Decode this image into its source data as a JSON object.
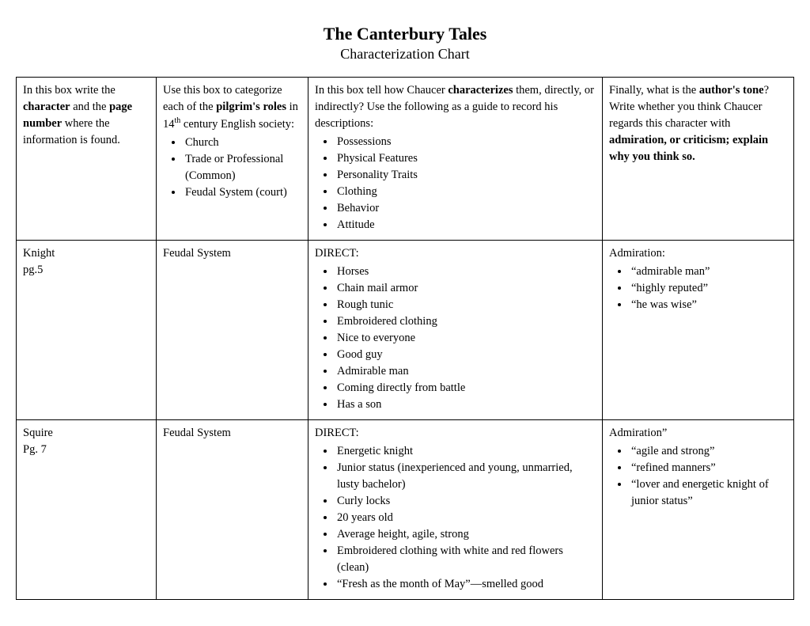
{
  "title": "The Canterbury Tales",
  "subtitle": "Characterization Chart",
  "header": {
    "col1_pre": "In this box write the ",
    "col1_b1": "character",
    "col1_mid": " and the ",
    "col1_b2": "page number",
    "col1_post": " where the information is found.",
    "col2_pre": "Use this box to categorize each of the ",
    "col2_b": "pilgrim's roles",
    "col2_mid": " in 14",
    "col2_sup": "th",
    "col2_post": " century English society:",
    "col2_items": [
      "Church",
      "Trade or Professional (Common)",
      "Feudal System (court)"
    ],
    "col3_pre": "In this box tell how Chaucer ",
    "col3_b": "characterizes",
    "col3_post": " them, directly, or indirectly? Use the following as a guide to record his descriptions:",
    "col3_items": [
      "Possessions",
      "Physical Features",
      "Personality Traits",
      "Clothing",
      "Behavior",
      "Attitude"
    ],
    "col4_pre": "Finally, what is the ",
    "col4_b1": "author's tone",
    "col4_mid": "? Write whether you think Chaucer regards this character with ",
    "col4_b2": "admiration, or criticism; explain why you think so."
  },
  "rows": [
    {
      "character": "Knight",
      "page": "pg.5",
      "role": "Feudal System",
      "desc_label": "DIRECT:",
      "desc_items": [
        "Horses",
        "Chain mail armor",
        "Rough tunic",
        "Embroidered clothing",
        "Nice to everyone",
        "Good guy",
        "Admirable man",
        "Coming directly from battle",
        "Has a son"
      ],
      "tone_label": "Admiration:",
      "tone_items": [
        "“admirable man”",
        "“highly reputed”",
        "“he was wise”"
      ]
    },
    {
      "character": "Squire",
      "page": "Pg. 7",
      "role": "Feudal System",
      "desc_label": "DIRECT:",
      "desc_items": [
        "Energetic knight",
        "Junior status (inexperienced and young, unmarried, lusty bachelor)",
        "Curly locks",
        "20 years old",
        "Average height, agile, strong",
        "Embroidered clothing with white and red flowers (clean)",
        "“Fresh as the month of May”—smelled good"
      ],
      "tone_label": "Admiration”",
      "tone_items": [
        "“agile and strong”",
        "“refined manners”",
        "“lover and energetic knight of junior status”"
      ]
    }
  ]
}
